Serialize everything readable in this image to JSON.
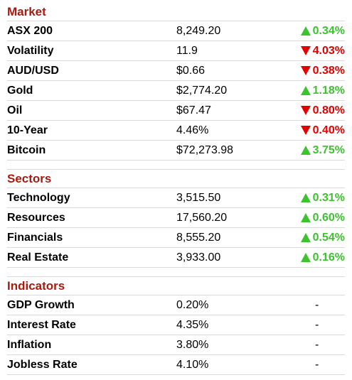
{
  "colors": {
    "section_title": "#a81b10",
    "up": "#3cc32e",
    "down": "#e50000",
    "divider": "#d9d9d9"
  },
  "sections": [
    {
      "title": "Market",
      "rows": [
        {
          "name": "ASX 200",
          "value": "8,249.20",
          "direction": "up",
          "change": "0.34%"
        },
        {
          "name": "Volatility",
          "value": "11.9",
          "direction": "down",
          "change": "4.03%"
        },
        {
          "name": "AUD/USD",
          "value": "$0.66",
          "direction": "down",
          "change": "0.38%"
        },
        {
          "name": "Gold",
          "value": "$2,774.20",
          "direction": "up",
          "change": "1.18%"
        },
        {
          "name": "Oil",
          "value": "$67.47",
          "direction": "down",
          "change": "0.80%"
        },
        {
          "name": "10-Year",
          "value": "4.46%",
          "direction": "down",
          "change": "0.40%"
        },
        {
          "name": "Bitcoin",
          "value": "$72,273.98",
          "direction": "up",
          "change": "3.75%"
        }
      ]
    },
    {
      "title": "Sectors",
      "rows": [
        {
          "name": "Technology",
          "value": "3,515.50",
          "direction": "up",
          "change": "0.31%"
        },
        {
          "name": "Resources",
          "value": "17,560.20",
          "direction": "up",
          "change": "0.60%"
        },
        {
          "name": "Financials",
          "value": "8,555.20",
          "direction": "up",
          "change": "0.54%"
        },
        {
          "name": "Real Estate",
          "value": "3,933.00",
          "direction": "up",
          "change": "0.16%"
        }
      ]
    },
    {
      "title": "Indicators",
      "rows": [
        {
          "name": "GDP Growth",
          "value": "0.20%",
          "direction": "none",
          "change": "-"
        },
        {
          "name": "Interest Rate",
          "value": "4.35%",
          "direction": "none",
          "change": "-"
        },
        {
          "name": "Inflation",
          "value": "3.80%",
          "direction": "none",
          "change": "-"
        },
        {
          "name": "Jobless Rate",
          "value": "4.10%",
          "direction": "none",
          "change": "-"
        }
      ]
    }
  ]
}
